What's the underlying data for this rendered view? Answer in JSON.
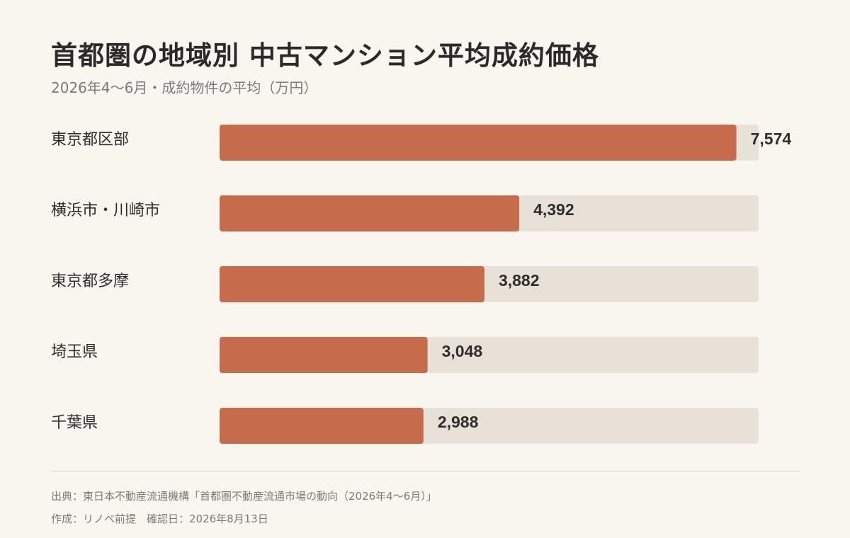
{
  "title": "首都圏の地域別 中古マンション平均成約価格",
  "subtitle": "2026年4〜6月・成約物件の平均（万円）",
  "colors": {
    "bar": "#c66c4a",
    "track": "#e8e1d7",
    "background": "#f9f6ef"
  },
  "chart_data": {
    "type": "bar",
    "orientation": "horizontal",
    "categories": [
      "東京都区部",
      "横浜市・川崎市",
      "東京都多摩",
      "埼玉県",
      "千葉県"
    ],
    "values": [
      7574,
      4392,
      3882,
      3048,
      2988
    ],
    "value_labels": [
      "7,574",
      "4,392",
      "3,882",
      "3,048",
      "2,988"
    ],
    "xlim": [
      0,
      7900
    ],
    "grid": false,
    "legend": "none"
  },
  "footer": {
    "source": "出典：東日本不動産流通機構「首都圏不動産流通市場の動向（2026年4〜6月）」",
    "credit": "作成：リノベ前提　確認日：2026年8月13日"
  }
}
